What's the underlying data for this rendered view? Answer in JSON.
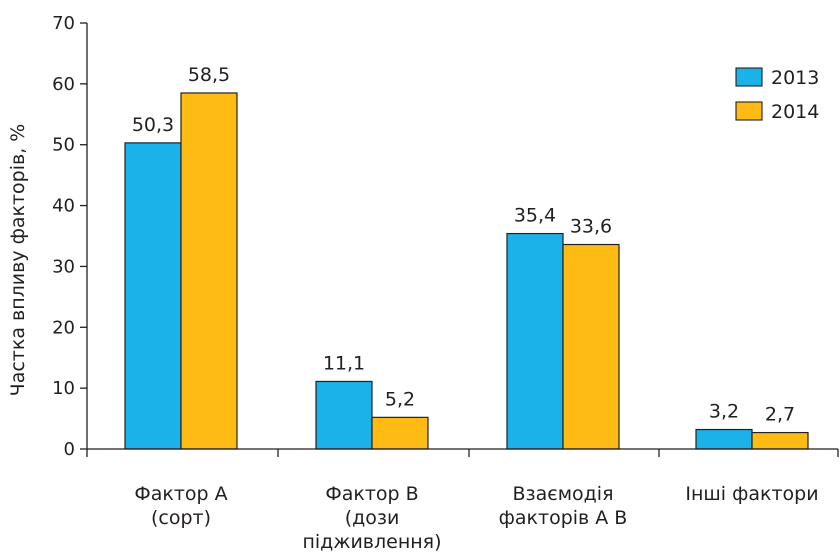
{
  "chart_data": {
    "type": "bar",
    "categories": [
      [
        "Фактор А",
        "(сорт)"
      ],
      [
        "Фактор В",
        "(дози",
        "підживлення)"
      ],
      [
        "Взаємодія",
        "факторів А В"
      ],
      [
        "Інші фактори"
      ]
    ],
    "series": [
      {
        "name": "2013",
        "values": [
          50.3,
          11.1,
          35.4,
          3.2
        ],
        "labels": [
          "50,3",
          "11,1",
          "35,4",
          "3,2"
        ],
        "color": "#1ab2e8"
      },
      {
        "name": "2014",
        "values": [
          58.5,
          5.2,
          33.6,
          2.7
        ],
        "labels": [
          "58,5",
          "5,2",
          "33,6",
          "2,7"
        ],
        "color": "#fdbb14"
      }
    ],
    "ylabel": "Частка впливу факторів, %",
    "xlabel": "",
    "ylim": [
      0,
      70
    ],
    "yticks": [
      0,
      10,
      20,
      30,
      40,
      50,
      60,
      70
    ],
    "grid": false,
    "legend_position": "top-right",
    "edge_color": "#231f20"
  }
}
